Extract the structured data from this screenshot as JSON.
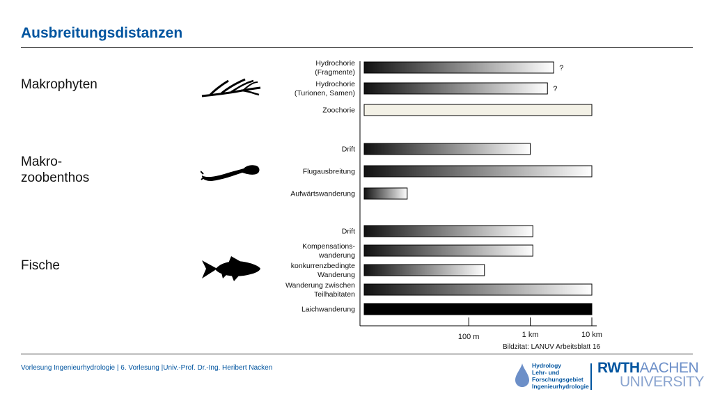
{
  "title": "Ausbreitungsdistanzen",
  "groups": {
    "makrophyten": "Makrophyten",
    "makrozoobenthos_line1": "Makro-",
    "makrozoobenthos_line2": "zoobenthos",
    "fische": "Fische"
  },
  "icons": {
    "plant": "aquatic-plant-icon",
    "insect": "insect-larva-icon",
    "fish": "fish-icon"
  },
  "colors": {
    "title": "#00549f",
    "bar_dark": "#111111",
    "bar_light": "#ffffff",
    "zoochorie_fill": "#f3f1e6"
  },
  "chart_data": {
    "type": "bar",
    "orientation": "horizontal",
    "x_scale": "log",
    "x_unit": "m",
    "xlim": [
      2,
      10000
    ],
    "x_ticks": [
      {
        "value": 100,
        "label": "100 m"
      },
      {
        "value": 1000,
        "label": "1 km"
      },
      {
        "value": 10000,
        "label": "10 km"
      }
    ],
    "series": [
      {
        "category": "Hydrochorie (Fragmente)",
        "label_lines": [
          "Hydrochorie",
          "(Fragmente)"
        ],
        "group": "Makrophyten",
        "value": 2400,
        "style": "gradient",
        "annotation": "?"
      },
      {
        "category": "Hydrochorie (Turionen, Samen)",
        "label_lines": [
          "Hydrochorie",
          "(Turionen, Samen)"
        ],
        "group": "Makrophyten",
        "value": 1900,
        "style": "gradient",
        "annotation": "?"
      },
      {
        "category": "Zoochorie",
        "label_lines": [
          "Zoochorie"
        ],
        "group": "Makrophyten",
        "value": 10000,
        "style": "light"
      },
      {
        "category": "Drift",
        "label_lines": [
          "Drift"
        ],
        "group": "Makrozoobenthos",
        "value": 1000,
        "style": "gradient"
      },
      {
        "category": "Flugausbreitung",
        "label_lines": [
          "Flugausbreitung"
        ],
        "group": "Makrozoobenthos",
        "value": 10000,
        "style": "gradient"
      },
      {
        "category": "Aufwärtswanderung",
        "label_lines": [
          "Aufwärtswanderung"
        ],
        "group": "Makrozoobenthos",
        "value": 10,
        "style": "gradient"
      },
      {
        "category": "Drift",
        "label_lines": [
          "Drift"
        ],
        "group": "Fische",
        "value": 1100,
        "style": "gradient"
      },
      {
        "category": "Kompensations-wanderung",
        "label_lines": [
          "Kompensations-",
          "wanderung"
        ],
        "group": "Fische",
        "value": 1100,
        "style": "gradient"
      },
      {
        "category": "konkurrenzbedingte Wanderung",
        "label_lines": [
          "konkurrenzbedingte",
          "Wanderung"
        ],
        "group": "Fische",
        "value": 180,
        "style": "gradient"
      },
      {
        "category": "Wanderung zwischen Teilhabitaten",
        "label_lines": [
          "Wanderung zwischen",
          "Teilhabitaten"
        ],
        "group": "Fische",
        "value": 10000,
        "style": "gradient"
      },
      {
        "category": "Laichwanderung",
        "label_lines": [
          "Laichwanderung"
        ],
        "group": "Fische",
        "value": 10000,
        "style": "solid"
      }
    ]
  },
  "source": "Bildzitat: LANUV Arbeitsblatt 16",
  "footer": "Vorlesung Ingenieurhydrologie | 6. Vorlesung |Univ.-Prof. Dr.-Ing. Heribert Nacken",
  "logo": {
    "hydrology": "Hydrology\nLehr- und\nForschungsgebiet\nIngenieurhydrologie",
    "rwth_bold": "RWTH",
    "rwth_light": "AACHEN",
    "university": "UNIVERSITY"
  }
}
